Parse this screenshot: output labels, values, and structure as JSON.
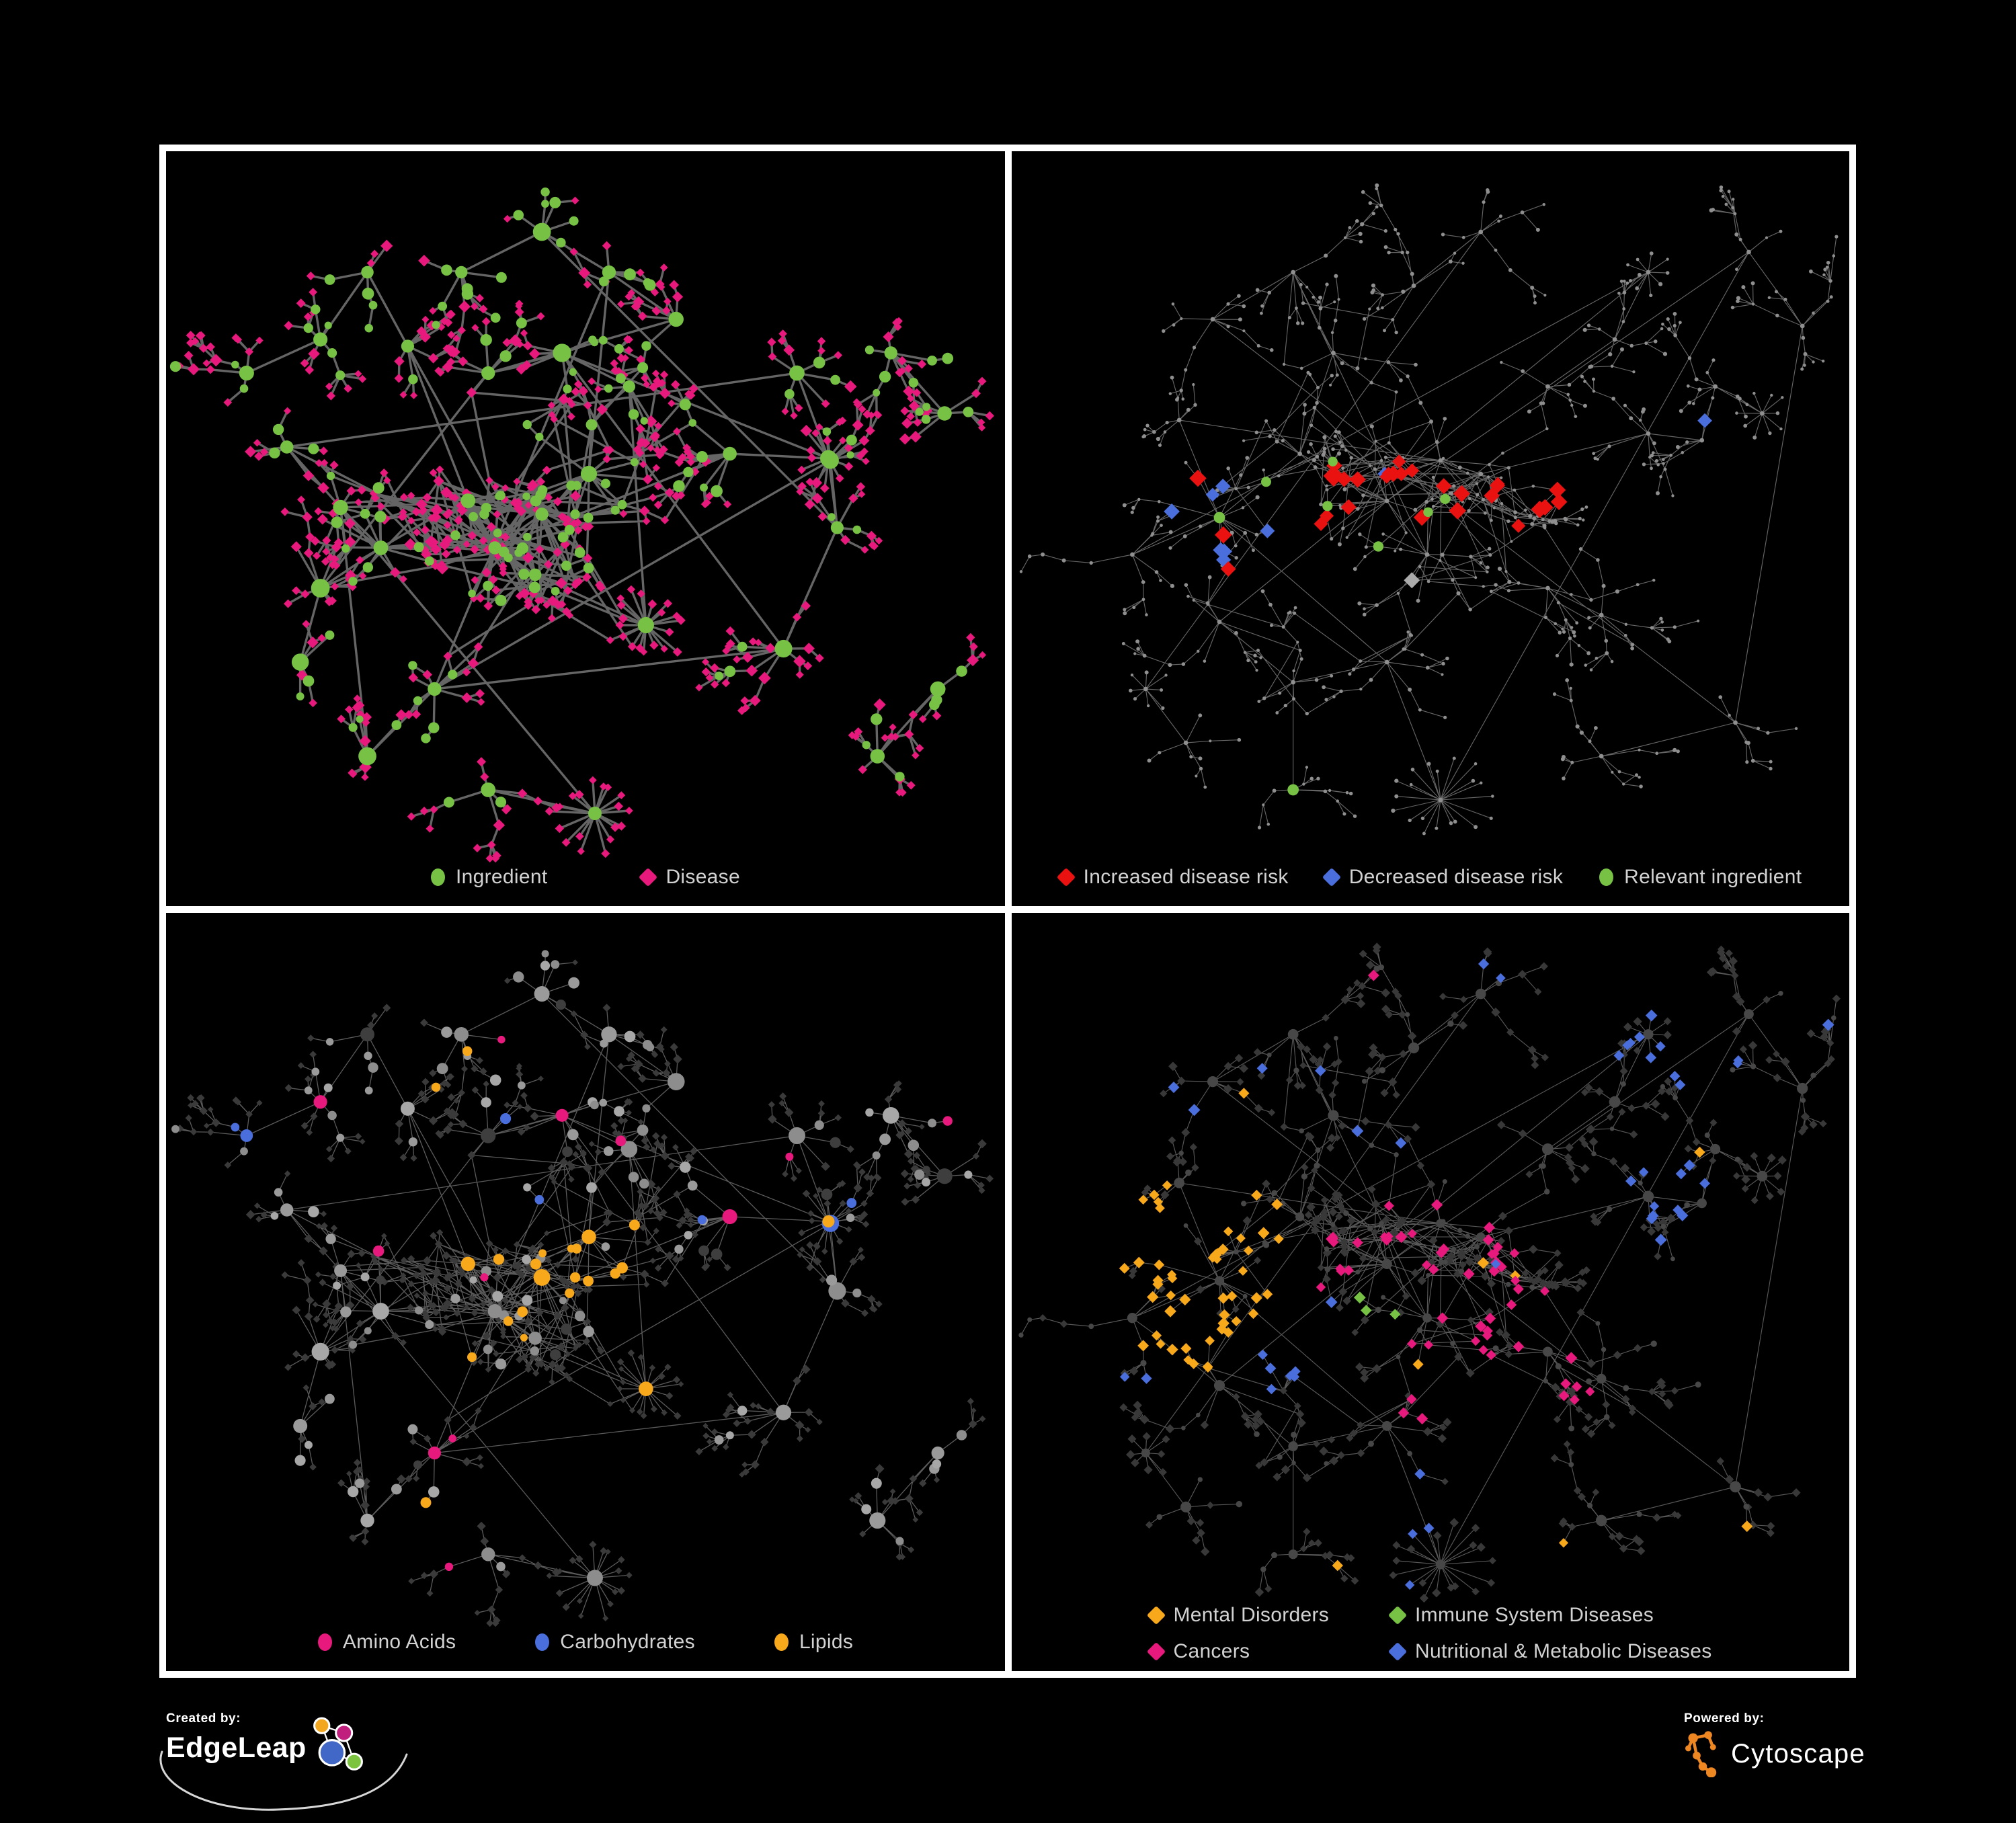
{
  "figure": {
    "background": "#000000",
    "panel_border": "#FFFFFF"
  },
  "palette": {
    "green": "#77C144",
    "pink": "#E8197C",
    "red": "#EA1111",
    "blue": "#4A6EDB",
    "orange": "#F7A81B",
    "gray_node": "#9A9A9A",
    "dark_diamond": "#3A3A3A",
    "gray_diamond": "#ABABAB",
    "edge_dark": "#6E6E6E",
    "edge_light": "#8C8C8C",
    "legend_text": "#D2D2D2"
  },
  "panels": [
    {
      "name": "ingredient-disease-network",
      "legend": [
        {
          "label": "Ingredient",
          "shape": "circle",
          "color": "#77C144"
        },
        {
          "label": "Disease",
          "shape": "diamond",
          "color": "#E8197C"
        }
      ]
    },
    {
      "name": "disease-risk-network",
      "legend": [
        {
          "label": "Increased disease risk",
          "shape": "diamond",
          "color": "#EA1111"
        },
        {
          "label": "Decreased disease risk",
          "shape": "diamond",
          "color": "#4A6EDB"
        },
        {
          "label": "Relevant ingredient",
          "shape": "circle",
          "color": "#77C144"
        }
      ]
    },
    {
      "name": "nutrient-class-network",
      "legend": [
        {
          "label": "Amino Acids",
          "shape": "circle",
          "color": "#E8197C"
        },
        {
          "label": "Carbohydrates",
          "shape": "circle",
          "color": "#4A6EDB"
        },
        {
          "label": "Lipids",
          "shape": "circle",
          "color": "#F7A81B"
        }
      ]
    },
    {
      "name": "disease-class-network",
      "legend": [
        {
          "label": "Mental Disorders",
          "shape": "diamond",
          "color": "#F7A81B"
        },
        {
          "label": "Immune System Diseases",
          "shape": "diamond",
          "color": "#77C144"
        },
        {
          "label": "Cancers",
          "shape": "diamond",
          "color": "#E8197C"
        },
        {
          "label": "Nutritional & Metabolic Diseases",
          "shape": "diamond",
          "color": "#4A6EDB"
        }
      ]
    }
  ],
  "footer": {
    "created_by_label": "Created by:",
    "created_by_brand": "EdgeLeap",
    "powered_by_label": "Powered by:",
    "powered_by_brand": "Cytoscape"
  }
}
